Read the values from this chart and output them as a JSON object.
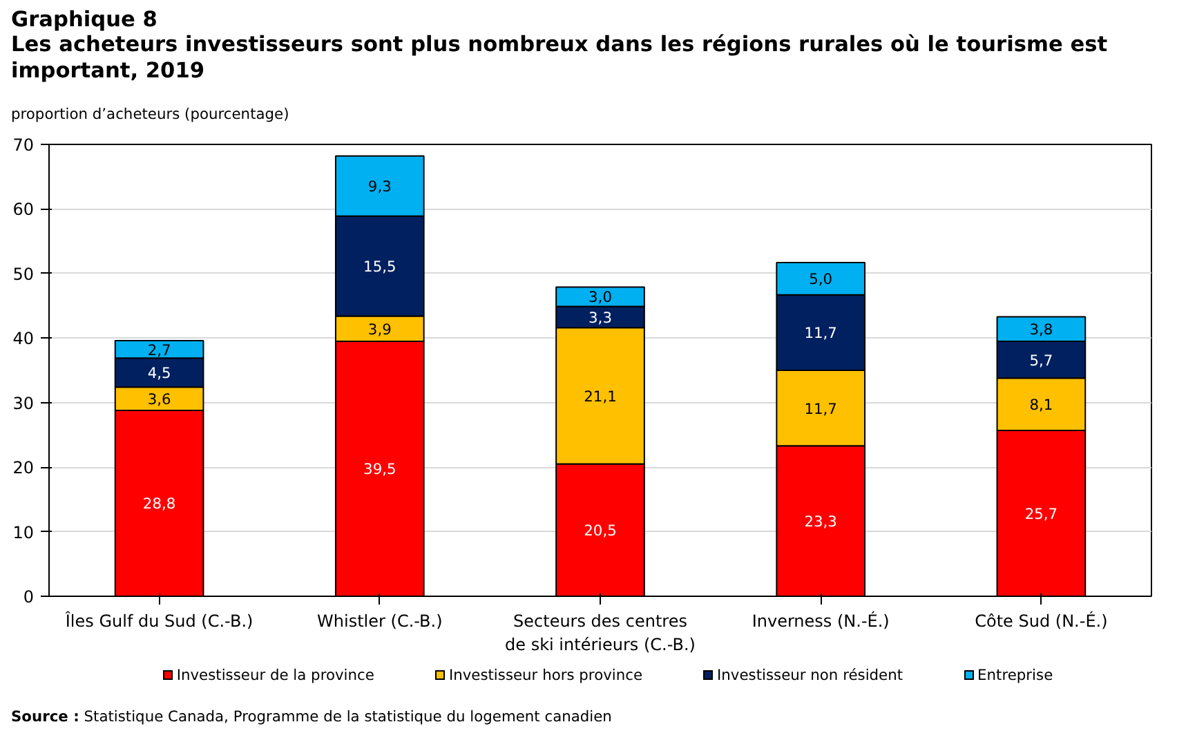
{
  "chart_data": {
    "type": "bar",
    "stacked": true,
    "title": "Graphique 8",
    "subtitle": "Les acheteurs investisseurs sont plus nombreux dans les régions rurales où le tourisme est important, 2019",
    "ylabel": "proportion d’acheteurs (pourcentage)",
    "categories": [
      "Îles Gulf du Sud (C.-B.)",
      "Whistler (C.-B.)",
      "Secteurs des centres\nde ski intérieurs (C.-B.)",
      "Inverness (N.-É.)",
      "Côte Sud (N.-É.)"
    ],
    "series": [
      {
        "name": "Investisseur de la province",
        "color": "#ff0000",
        "values": [
          28.8,
          39.5,
          20.5,
          23.3,
          25.7
        ],
        "value_labels": [
          "28,8",
          "39,5",
          "20,5",
          "23,3",
          "25,7"
        ]
      },
      {
        "name": "Investisseur hors province",
        "color": "#ffc000",
        "values": [
          3.6,
          3.9,
          21.1,
          11.7,
          8.1
        ],
        "value_labels": [
          "3,6",
          "3,9",
          "21,1",
          "11,7",
          "8,1"
        ]
      },
      {
        "name": "Investisseur non résident",
        "color": "#002060",
        "values": [
          4.5,
          15.5,
          3.3,
          11.7,
          5.7
        ],
        "value_labels": [
          "4,5",
          "15,5",
          "3,3",
          "11,7",
          "5,7"
        ]
      },
      {
        "name": "Entreprise",
        "color": "#00b0f0",
        "values": [
          2.7,
          9.3,
          3.0,
          5.0,
          3.8
        ],
        "value_labels": [
          "2,7",
          "9,3",
          "3,0",
          "5,0",
          "3,8"
        ]
      }
    ],
    "ylim": [
      0,
      70
    ],
    "yticks": [
      0,
      10,
      20,
      30,
      40,
      50,
      60,
      70
    ],
    "grid": "y",
    "legend": "bottom",
    "annotations": [
      "Source : Statistique Canada, Programme de la statistique du logement canadien"
    ]
  }
}
